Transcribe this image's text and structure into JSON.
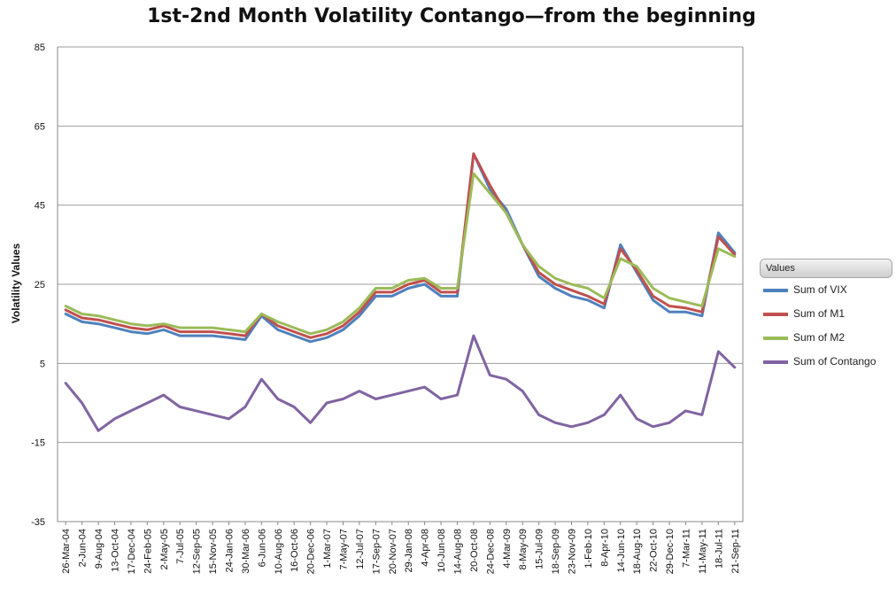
{
  "chart_data": {
    "type": "line",
    "title": "1st-2nd Month Volatility Contango—from the beginning",
    "xlabel": "",
    "ylabel": "Volatility Values",
    "ylim": [
      -35,
      85
    ],
    "yticks": [
      -35,
      -15,
      5,
      25,
      45,
      65,
      85
    ],
    "grid": true,
    "legend_title": "Values",
    "legend_position": "right",
    "x_tick_labels": [
      "26-Mar-04",
      "2-Jun-04",
      "9-Aug-04",
      "13-Oct-04",
      "17-Dec-04",
      "24-Feb-05",
      "2-May-05",
      "7-Jul-05",
      "12-Sep-05",
      "15-Nov-05",
      "24-Jan-06",
      "30-Mar-06",
      "6-Jun-06",
      "10-Aug-06",
      "16-Oct-06",
      "20-Dec-06",
      "1-Mar-07",
      "7-May-07",
      "12-Jul-07",
      "17-Sep-07",
      "20-Nov-07",
      "29-Jan-08",
      "4-Apr-08",
      "10-Jun-08",
      "14-Aug-08",
      "20-Oct-08",
      "24-Dec-08",
      "4-Mar-09",
      "8-May-09",
      "15-Jul-09",
      "18-Sep-09",
      "23-Nov-09",
      "1-Feb-10",
      "8-Apr-10",
      "14-Jun-10",
      "18-Aug-10",
      "22-Oct-10",
      "29-Dec-10",
      "7-Mar-11",
      "11-May-11",
      "18-Jul-11",
      "21-Sep-11"
    ],
    "series": [
      {
        "name": "Sum of VIX",
        "color": "#4f81bd",
        "values": [
          17.5,
          15.5,
          15.0,
          14.0,
          13.0,
          12.5,
          13.5,
          12.0,
          12.0,
          12.0,
          11.5,
          11.0,
          17.0,
          13.5,
          12.0,
          10.5,
          11.5,
          13.5,
          17.0,
          22.0,
          22.0,
          24.0,
          25.0,
          22.0,
          22.0,
          58.0,
          49.0,
          44.0,
          35.0,
          27.0,
          24.0,
          22.0,
          21.0,
          19.0,
          35.0,
          28.0,
          21.0,
          18.0,
          18.0,
          17.0,
          38.0,
          33.0
        ]
      },
      {
        "name": "Sum of M1",
        "color": "#c0504d",
        "values": [
          18.5,
          16.5,
          16.0,
          15.0,
          14.0,
          13.5,
          14.5,
          13.0,
          13.0,
          13.0,
          12.5,
          12.0,
          17.5,
          14.5,
          13.0,
          11.5,
          12.5,
          14.5,
          18.0,
          23.0,
          23.0,
          25.0,
          26.0,
          23.0,
          23.0,
          58.0,
          50.0,
          43.0,
          35.0,
          28.0,
          25.0,
          23.5,
          22.0,
          20.0,
          34.0,
          28.5,
          22.0,
          19.5,
          19.0,
          18.0,
          37.0,
          32.5
        ]
      },
      {
        "name": "Sum of M2",
        "color": "#9bbb59",
        "values": [
          19.5,
          17.5,
          17.0,
          16.0,
          15.0,
          14.5,
          15.0,
          14.0,
          14.0,
          14.0,
          13.5,
          13.0,
          17.5,
          15.5,
          14.0,
          12.5,
          13.5,
          15.5,
          19.0,
          24.0,
          24.0,
          26.0,
          26.5,
          24.0,
          24.0,
          53.0,
          48.0,
          43.0,
          35.0,
          29.5,
          26.5,
          25.0,
          24.0,
          21.5,
          31.5,
          29.5,
          24.0,
          21.5,
          20.5,
          19.5,
          34.0,
          32.0
        ]
      },
      {
        "name": "Sum of Contango",
        "color": "#8064a2",
        "values": [
          0.0,
          -5.0,
          -12.0,
          -9.0,
          -7.0,
          -5.0,
          -3.0,
          -6.0,
          -7.0,
          -8.0,
          -9.0,
          -6.0,
          1.0,
          -4.0,
          -6.0,
          -10.0,
          -5.0,
          -4.0,
          -2.0,
          -4.0,
          -3.0,
          -2.0,
          -1.0,
          -4.0,
          -3.0,
          12.0,
          2.0,
          1.0,
          -2.0,
          -8.0,
          -10.0,
          -11.0,
          -10.0,
          -8.0,
          -3.0,
          -9.0,
          -11.0,
          -10.0,
          -7.0,
          -8.0,
          8.0,
          4.0
        ]
      }
    ]
  }
}
